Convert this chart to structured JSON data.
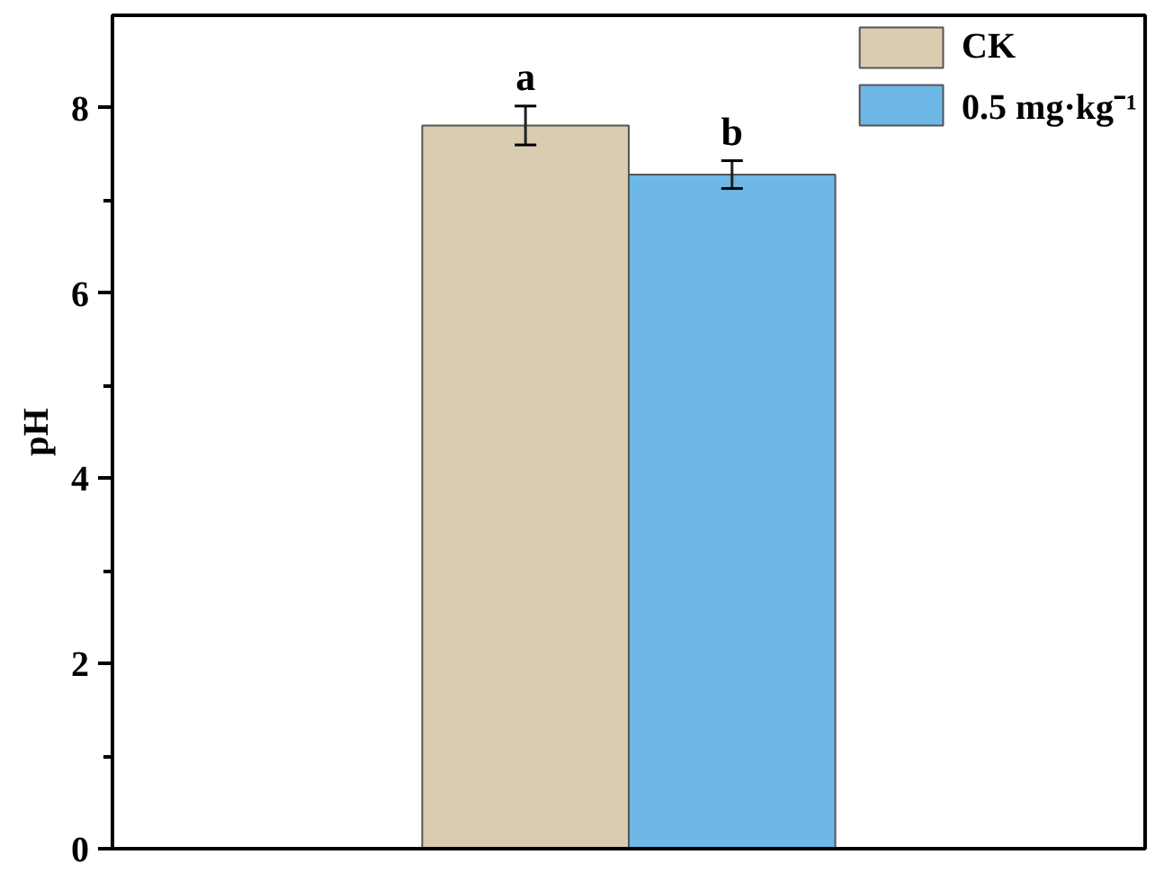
{
  "chart_data": {
    "type": "bar",
    "ylabel": "pH",
    "categories": [
      null
    ],
    "series": [
      {
        "name": "CK",
        "color": "#d9ccb0",
        "values": [
          7.81
        ],
        "errors": [
          0.21
        ]
      },
      {
        "name": "0.5 mg·kg⁻¹",
        "color": "#6db8e6",
        "values": [
          7.28
        ],
        "errors": [
          0.15
        ]
      }
    ],
    "annotations": [
      "a",
      "b"
    ],
    "ylim": [
      0,
      9
    ],
    "yticks": [
      0,
      {
        "value": 1,
        "label": null
      },
      2,
      {
        "value": 3,
        "label": null
      },
      4,
      {
        "value": 5,
        "label": null
      },
      6,
      {
        "value": 7,
        "label": null
      },
      8
    ],
    "legend": "top right",
    "grid": false
  }
}
